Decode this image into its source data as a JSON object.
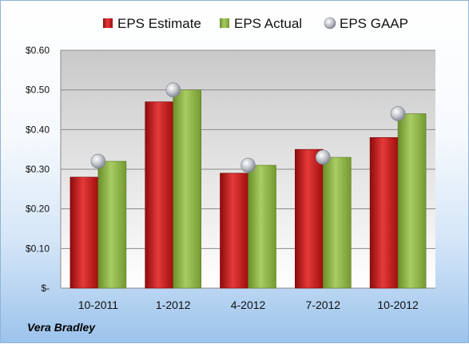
{
  "company": "Vera Bradley",
  "colors": {
    "estimate": "#c81a1a",
    "actual": "#8fb843",
    "gaap": "#b8bcc4",
    "plot_top": "#c8c8c8",
    "plot_bottom": "#ffffff"
  },
  "chart_data": {
    "type": "bar",
    "title": "",
    "xlabel": "",
    "ylabel": "",
    "categories": [
      "10-2011",
      "1-2012",
      "4-2012",
      "7-2012",
      "10-2012"
    ],
    "series": [
      {
        "name": "EPS Estimate",
        "kind": "bar",
        "values": [
          0.28,
          0.47,
          0.29,
          0.35,
          0.38
        ]
      },
      {
        "name": "EPS Actual",
        "kind": "bar",
        "values": [
          0.32,
          0.5,
          0.31,
          0.33,
          0.44
        ]
      },
      {
        "name": "EPS GAAP",
        "kind": "marker",
        "values": [
          0.32,
          0.5,
          0.31,
          0.33,
          0.44
        ]
      }
    ],
    "ylim": [
      0,
      0.6
    ],
    "yticks": [
      0,
      0.1,
      0.2,
      0.3,
      0.4,
      0.5,
      0.6
    ],
    "ytick_labels": [
      "$-",
      "$0.10",
      "$0.20",
      "$0.30",
      "$0.40",
      "$0.50",
      "$0.60"
    ],
    "grid": true,
    "legend_position": "top"
  }
}
